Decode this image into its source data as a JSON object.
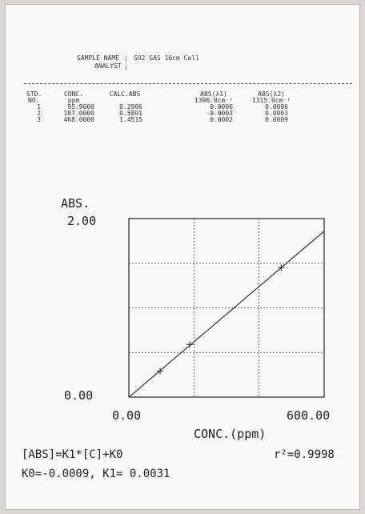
{
  "header": {
    "sample_name_label": "SAMPLE NAME",
    "sample_name_sep": ";",
    "sample_name_value": "SO2 GAS 10cm Cell",
    "analyst_label": "ANALYST",
    "analyst_sep": ";"
  },
  "table": {
    "col_std_1": "STD.",
    "col_std_2": "NO.",
    "col_conc_1": "CONC.",
    "col_conc_2": "ppm",
    "col_calc": "CALC.ABS",
    "col_abs1_1": "ABS(λ1)",
    "col_abs1_2": "1396.0cm⁻¹",
    "col_abs2_1": "ABS(λ2)",
    "col_abs2_2": "1315.0cm⁻¹",
    "rows": [
      {
        "no": "1",
        "conc": "95.9000",
        "calc": "0.2906",
        "abs1": "0.0006",
        "abs2": "0.0006"
      },
      {
        "no": "2",
        "conc": "187.0000",
        "calc": "0.5891",
        "abs1": "-0.0003",
        "abs2": "0.0003"
      },
      {
        "no": "3",
        "conc": "468.0000",
        "calc": "1.4515",
        "abs1": "0.0002",
        "abs2": "0.0009"
      }
    ]
  },
  "chart_data": {
    "type": "scatter",
    "ylabel": "ABS.",
    "xlabel": "CONC.(ppm)",
    "xlim": [
      0,
      600
    ],
    "ylim": [
      0,
      2
    ],
    "x_tick_labels": [
      "0.00",
      "600.00"
    ],
    "y_tick_labels": [
      "2.00",
      "0.00"
    ],
    "grid": true,
    "points": [
      {
        "x": 95.9,
        "y": 0.2906
      },
      {
        "x": 187.0,
        "y": 0.5891
      },
      {
        "x": 468.0,
        "y": 1.4515
      }
    ],
    "fit_line": {
      "k0": -0.0009,
      "k1": 0.0031
    }
  },
  "footer": {
    "equation": "[ABS]=K1*[C]+K0",
    "r_squared": "r²=0.9998",
    "coefficients": "K0=-0.0009, K1= 0.0031"
  }
}
